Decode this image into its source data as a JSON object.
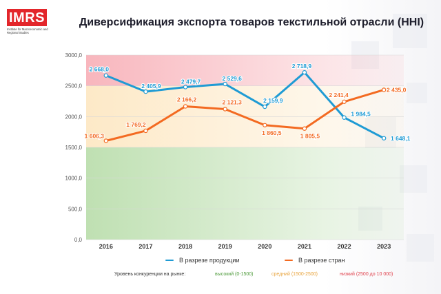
{
  "logo": {
    "name": "IMRS",
    "subtitle": "Institute for Macroeconomic and Regional Studies"
  },
  "title": "Диверсификация экспорта товаров текстильной отрасли (HHI)",
  "chart_data": {
    "type": "line",
    "title": "Диверсификация экспорта товаров текстильной отрасли (HHI)",
    "categories": [
      "2016",
      "2017",
      "2018",
      "2019",
      "2020",
      "2021",
      "2022",
      "2023"
    ],
    "ylim": [
      0,
      3000
    ],
    "yticks": [
      "0,0",
      "500,0",
      "1000,0",
      "1500,0",
      "2000,0",
      "2500,0",
      "3000,0"
    ],
    "series": [
      {
        "name": "В разрезе продукции",
        "color": "#1f9bd4",
        "values": [
          2668.0,
          2405.9,
          2479.7,
          2529.6,
          2159.9,
          2718.9,
          1984.5,
          1648.1
        ],
        "labels": [
          "2 668,0",
          "2 405,9",
          "2 479,7",
          "2 529,6",
          "2 159,9",
          "2 718,9",
          "1 984,5",
          "1 648,1"
        ]
      },
      {
        "name": "В разрезе стран",
        "color": "#f36a21",
        "values": [
          1606.3,
          1769.2,
          2166.2,
          2121.3,
          1860.5,
          1805.5,
          2241.4,
          2435.0
        ],
        "labels": [
          "1 606,3",
          "1 769,2",
          "2 166,2",
          "2 121,3",
          "1 860,5",
          "1 805,5",
          "2 241,4",
          "2 435,0"
        ]
      }
    ],
    "bands": [
      {
        "from": 0,
        "to": 1500,
        "color": "#bfe0b2"
      },
      {
        "from": 1500,
        "to": 2500,
        "color": "#fde9c7"
      },
      {
        "from": 2500,
        "to": 3000,
        "color": "#f8b6bd"
      }
    ]
  },
  "levels": {
    "label": "Уровень конкуренции на рынке:",
    "items": [
      {
        "text": "высокий (0-1500)",
        "color": "#4d9a3a"
      },
      {
        "text": "средний (1500-2500)",
        "color": "#e8a33b"
      },
      {
        "text": "низкий (2500 до 10 000)",
        "color": "#e0434e"
      }
    ]
  }
}
